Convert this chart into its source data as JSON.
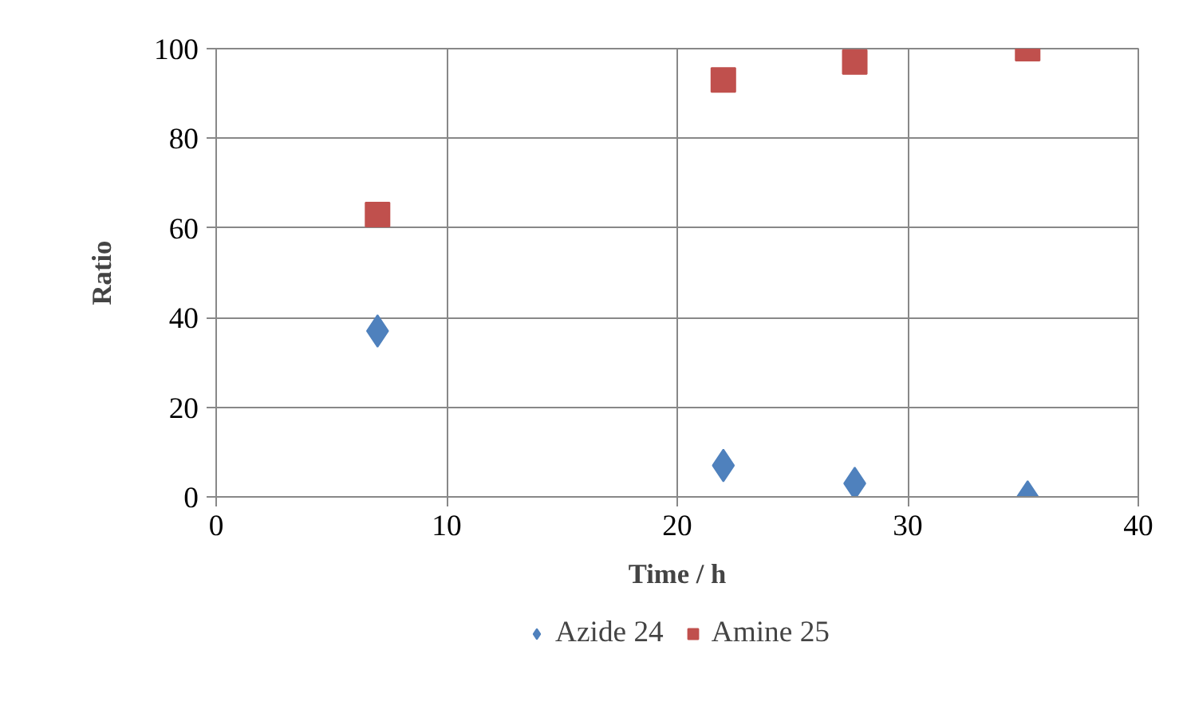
{
  "chart_data": {
    "type": "scatter",
    "xlabel": "Time / h",
    "ylabel": "Ratio",
    "xlim": [
      0,
      40
    ],
    "xticks": [
      0,
      10,
      20,
      30,
      40
    ],
    "ylim": [
      0,
      100
    ],
    "yticks": [
      0,
      20,
      40,
      60,
      80,
      100
    ],
    "grid": true,
    "legend": "bottom",
    "series": [
      {
        "name": "Azide 24",
        "color": "#4f81bd",
        "marker": "diamond",
        "x": [
          7,
          22,
          27.7,
          35.2
        ],
        "values": [
          37,
          7,
          3,
          0
        ]
      },
      {
        "name": "Amine 25",
        "color": "#c0504d",
        "marker": "square",
        "x": [
          7,
          22,
          27.7,
          35.2
        ],
        "values": [
          63,
          93,
          97,
          100
        ]
      }
    ]
  }
}
